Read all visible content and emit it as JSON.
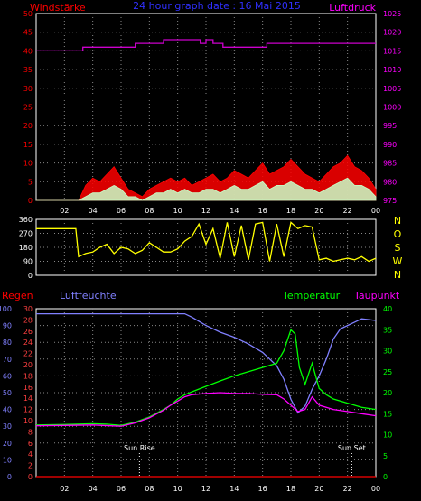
{
  "title": "24 hour graph date : 16 Mai 2015",
  "chart_data": [
    {
      "id": "wind-pressure",
      "type": "line",
      "left_axis_label": "Windstärke",
      "right_axis_label": "Luftdruck",
      "left_ticks": [
        "0",
        "5",
        "10",
        "15",
        "20",
        "25",
        "30",
        "35",
        "40",
        "45",
        "50"
      ],
      "right_ticks": [
        "975",
        "980",
        "985",
        "990",
        "995",
        "1000",
        "1005",
        "1010",
        "1015",
        "1020",
        "1025"
      ],
      "left_range": [
        0,
        50
      ],
      "right_range": [
        975,
        1025
      ],
      "x_ticks": [
        "02",
        "04",
        "06",
        "08",
        "10",
        "12",
        "14",
        "16",
        "18",
        "20",
        "22",
        "00"
      ],
      "x_range_hours": [
        0,
        24
      ],
      "grid": true,
      "series": [
        {
          "key": "gust",
          "color": "#ff0000",
          "hours": [
            0,
            3,
            3.5,
            4,
            4.5,
            5,
            5.5,
            6,
            6.5,
            7,
            7.5,
            8,
            8.5,
            9,
            9.5,
            10,
            10.5,
            11,
            11.5,
            12,
            12.5,
            13,
            13.5,
            14,
            14.5,
            15,
            15.5,
            16,
            16.5,
            17,
            17.5,
            18,
            18.5,
            19,
            19.5,
            20,
            20.5,
            21,
            21.5,
            22,
            22.5,
            23,
            23.5,
            24
          ],
          "values": [
            0,
            0,
            4,
            6,
            5,
            7,
            9,
            6,
            3,
            2,
            1,
            3,
            4,
            5,
            6,
            5,
            6,
            4,
            5,
            6,
            7,
            5,
            6,
            8,
            7,
            6,
            8,
            10,
            7,
            8,
            9,
            11,
            9,
            7,
            6,
            5,
            7,
            9,
            10,
            12,
            9,
            8,
            6,
            3
          ]
        },
        {
          "key": "wind",
          "color": "#c8ffc8",
          "hours": [
            0,
            3,
            3.5,
            4,
            4.5,
            5,
            5.5,
            6,
            6.5,
            7,
            7.5,
            8,
            8.5,
            9,
            9.5,
            10,
            10.5,
            11,
            11.5,
            12,
            12.5,
            13,
            13.5,
            14,
            14.5,
            15,
            15.5,
            16,
            16.5,
            17,
            17.5,
            18,
            18.5,
            19,
            19.5,
            20,
            20.5,
            21,
            21.5,
            22,
            22.5,
            23,
            23.5,
            24
          ],
          "values": [
            0,
            0,
            1,
            2,
            2,
            3,
            4,
            3,
            1,
            1,
            0,
            1,
            2,
            2,
            3,
            2,
            3,
            2,
            2,
            3,
            3,
            2,
            3,
            4,
            3,
            3,
            4,
            5,
            3,
            4,
            4,
            5,
            4,
            3,
            3,
            2,
            3,
            4,
            5,
            6,
            4,
            4,
            3,
            1
          ]
        },
        {
          "key": "pressure",
          "color": "#cc00cc",
          "hours": [
            0,
            3.3,
            3.3,
            7.0,
            7.0,
            9.0,
            9.0,
            11.6,
            11.6,
            12.0,
            12.0,
            12.5,
            12.5,
            13.2,
            13.2,
            16.3,
            16.3,
            24
          ],
          "values": [
            1015,
            1015,
            1016,
            1016,
            1017,
            1017,
            1018,
            1018,
            1017,
            1017,
            1018,
            1018,
            1017,
            1017,
            1016,
            1016,
            1017,
            1017
          ]
        }
      ]
    },
    {
      "id": "wind-direction",
      "type": "scatter",
      "left_ticks": [
        "0",
        "90",
        "180",
        "270",
        "360"
      ],
      "right_ticks": [
        "N",
        "W",
        "S",
        "O",
        "N"
      ],
      "left_range": [
        0,
        360
      ],
      "grid": true,
      "series": [
        {
          "key": "direction",
          "color": "#ffff00",
          "hours": [
            0,
            2.8,
            3.0,
            3.5,
            4,
            4.5,
            5,
            5.5,
            6,
            6.5,
            7,
            7.5,
            8,
            8.5,
            9,
            9.5,
            10,
            10.5,
            11,
            11.5,
            12,
            12.5,
            13,
            13.5,
            14,
            14.5,
            15,
            15.5,
            16,
            16.5,
            17,
            17.5,
            18,
            18.5,
            19,
            19.5,
            20,
            20.5,
            21,
            21.5,
            22,
            22.5,
            23,
            23.5,
            24
          ],
          "values": [
            300,
            300,
            120,
            140,
            150,
            180,
            200,
            140,
            180,
            170,
            140,
            160,
            210,
            180,
            150,
            150,
            170,
            220,
            250,
            330,
            200,
            300,
            110,
            340,
            120,
            320,
            100,
            330,
            340,
            90,
            330,
            120,
            340,
            300,
            320,
            310,
            100,
            110,
            90,
            100,
            110,
            100,
            120,
            90,
            110
          ]
        }
      ]
    },
    {
      "id": "temp-humidity",
      "type": "line",
      "left_axis_label": "Regen",
      "left_axis_label_2": "Luftfeuchte",
      "right_axis_label": "Temperatur",
      "right_axis_label_2": "Taupunkt",
      "left_ticks": [
        "0",
        "10",
        "20",
        "30",
        "40",
        "50",
        "60",
        "70",
        "80",
        "90",
        "100"
      ],
      "left_ticks_2": [
        "0",
        "2",
        "4",
        "6",
        "8",
        "10",
        "12",
        "14",
        "16",
        "18",
        "20",
        "22",
        "24",
        "26",
        "28",
        "30"
      ],
      "right_ticks": [
        "0",
        "5",
        "10",
        "15",
        "20",
        "25",
        "30",
        "35",
        "40"
      ],
      "left_range": [
        0,
        100
      ],
      "right_range": [
        0,
        40
      ],
      "x_ticks": [
        "02",
        "04",
        "06",
        "08",
        "10",
        "12",
        "14",
        "16",
        "18",
        "20",
        "22",
        "00"
      ],
      "x_range_hours": [
        0,
        24
      ],
      "annotations": [
        {
          "label": "Sun Rise",
          "hour": 7.3
        },
        {
          "label": "Sun Set",
          "hour": 22.3
        }
      ],
      "grid": true,
      "series": [
        {
          "key": "humidity",
          "color": "#8080ff",
          "axis": "left",
          "hours": [
            0,
            2,
            4,
            6,
            8,
            10,
            10.5,
            11,
            12,
            13,
            14,
            15,
            16,
            16.5,
            17,
            17.5,
            18,
            18.5,
            19,
            19.5,
            20,
            20.5,
            21,
            21.5,
            22,
            22.5,
            23,
            24
          ],
          "values": [
            97,
            97,
            97,
            97,
            97,
            97,
            97,
            95,
            90,
            86,
            83,
            79,
            74,
            70,
            66,
            58,
            46,
            38,
            42,
            52,
            60,
            70,
            82,
            88,
            90,
            92,
            94,
            93
          ]
        },
        {
          "key": "temperature",
          "color": "#00ff00",
          "axis": "right",
          "hours": [
            0,
            2,
            4,
            5,
            6,
            7,
            8,
            9,
            9.5,
            10,
            10.5,
            11,
            12,
            13,
            14,
            15,
            16,
            17,
            17.5,
            18,
            18.3,
            18.6,
            19,
            19.5,
            20,
            20.5,
            21,
            22,
            23,
            24
          ],
          "values": [
            12.3,
            12.4,
            12.6,
            12.5,
            12.2,
            13,
            14.2,
            16,
            17,
            18.5,
            19.5,
            20.2,
            21.5,
            22.8,
            24,
            25,
            26,
            27,
            30,
            35,
            34,
            26,
            22,
            27,
            21,
            19.5,
            18.5,
            17.5,
            16.5,
            16
          ]
        },
        {
          "key": "dewpoint",
          "color": "#ff00ff",
          "axis": "right",
          "hours": [
            0,
            2,
            4,
            6,
            7,
            8,
            9,
            9.5,
            10,
            10.5,
            11,
            12,
            13,
            14,
            15,
            16,
            17,
            17.5,
            18,
            18.5,
            19,
            19.5,
            20,
            21,
            22,
            23,
            24
          ],
          "values": [
            12.1,
            12.2,
            12.3,
            12,
            12.8,
            14,
            15.8,
            17,
            18,
            19,
            19.5,
            19.8,
            20,
            19.8,
            19.8,
            19.6,
            19.5,
            18.5,
            17,
            15.5,
            16,
            19,
            17,
            16,
            15.5,
            15,
            14.5
          ]
        },
        {
          "key": "rain",
          "color": "#ff0000",
          "axis": "left",
          "hours": [
            0,
            24
          ],
          "values": [
            0,
            0
          ]
        }
      ]
    }
  ]
}
